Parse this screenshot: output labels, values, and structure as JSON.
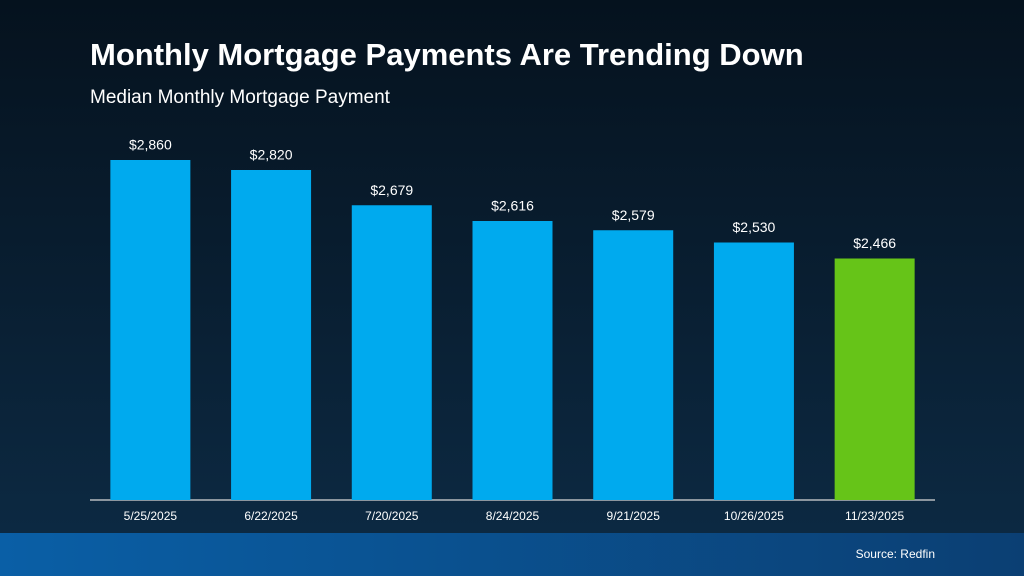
{
  "chart_data": {
    "type": "bar",
    "title": "Monthly Mortgage Payments Are Trending Down",
    "subtitle": "Median Monthly Mortgage Payment",
    "categories": [
      "5/25/2025",
      "6/22/2025",
      "7/20/2025",
      "8/24/2025",
      "9/21/2025",
      "10/26/2025",
      "11/23/2025"
    ],
    "values": [
      2860,
      2820,
      2679,
      2616,
      2579,
      2530,
      2466
    ],
    "value_labels": [
      "$2,860",
      "$2,820",
      "$2,679",
      "$2,616",
      "$2,579",
      "$2,530",
      "$2,466"
    ],
    "colors": [
      "#00aaee",
      "#00aaee",
      "#00aaee",
      "#00aaee",
      "#00aaee",
      "#00aaee",
      "#66c418"
    ],
    "ylim": [
      1500,
      3000
    ],
    "source": "Source: Redfin"
  }
}
